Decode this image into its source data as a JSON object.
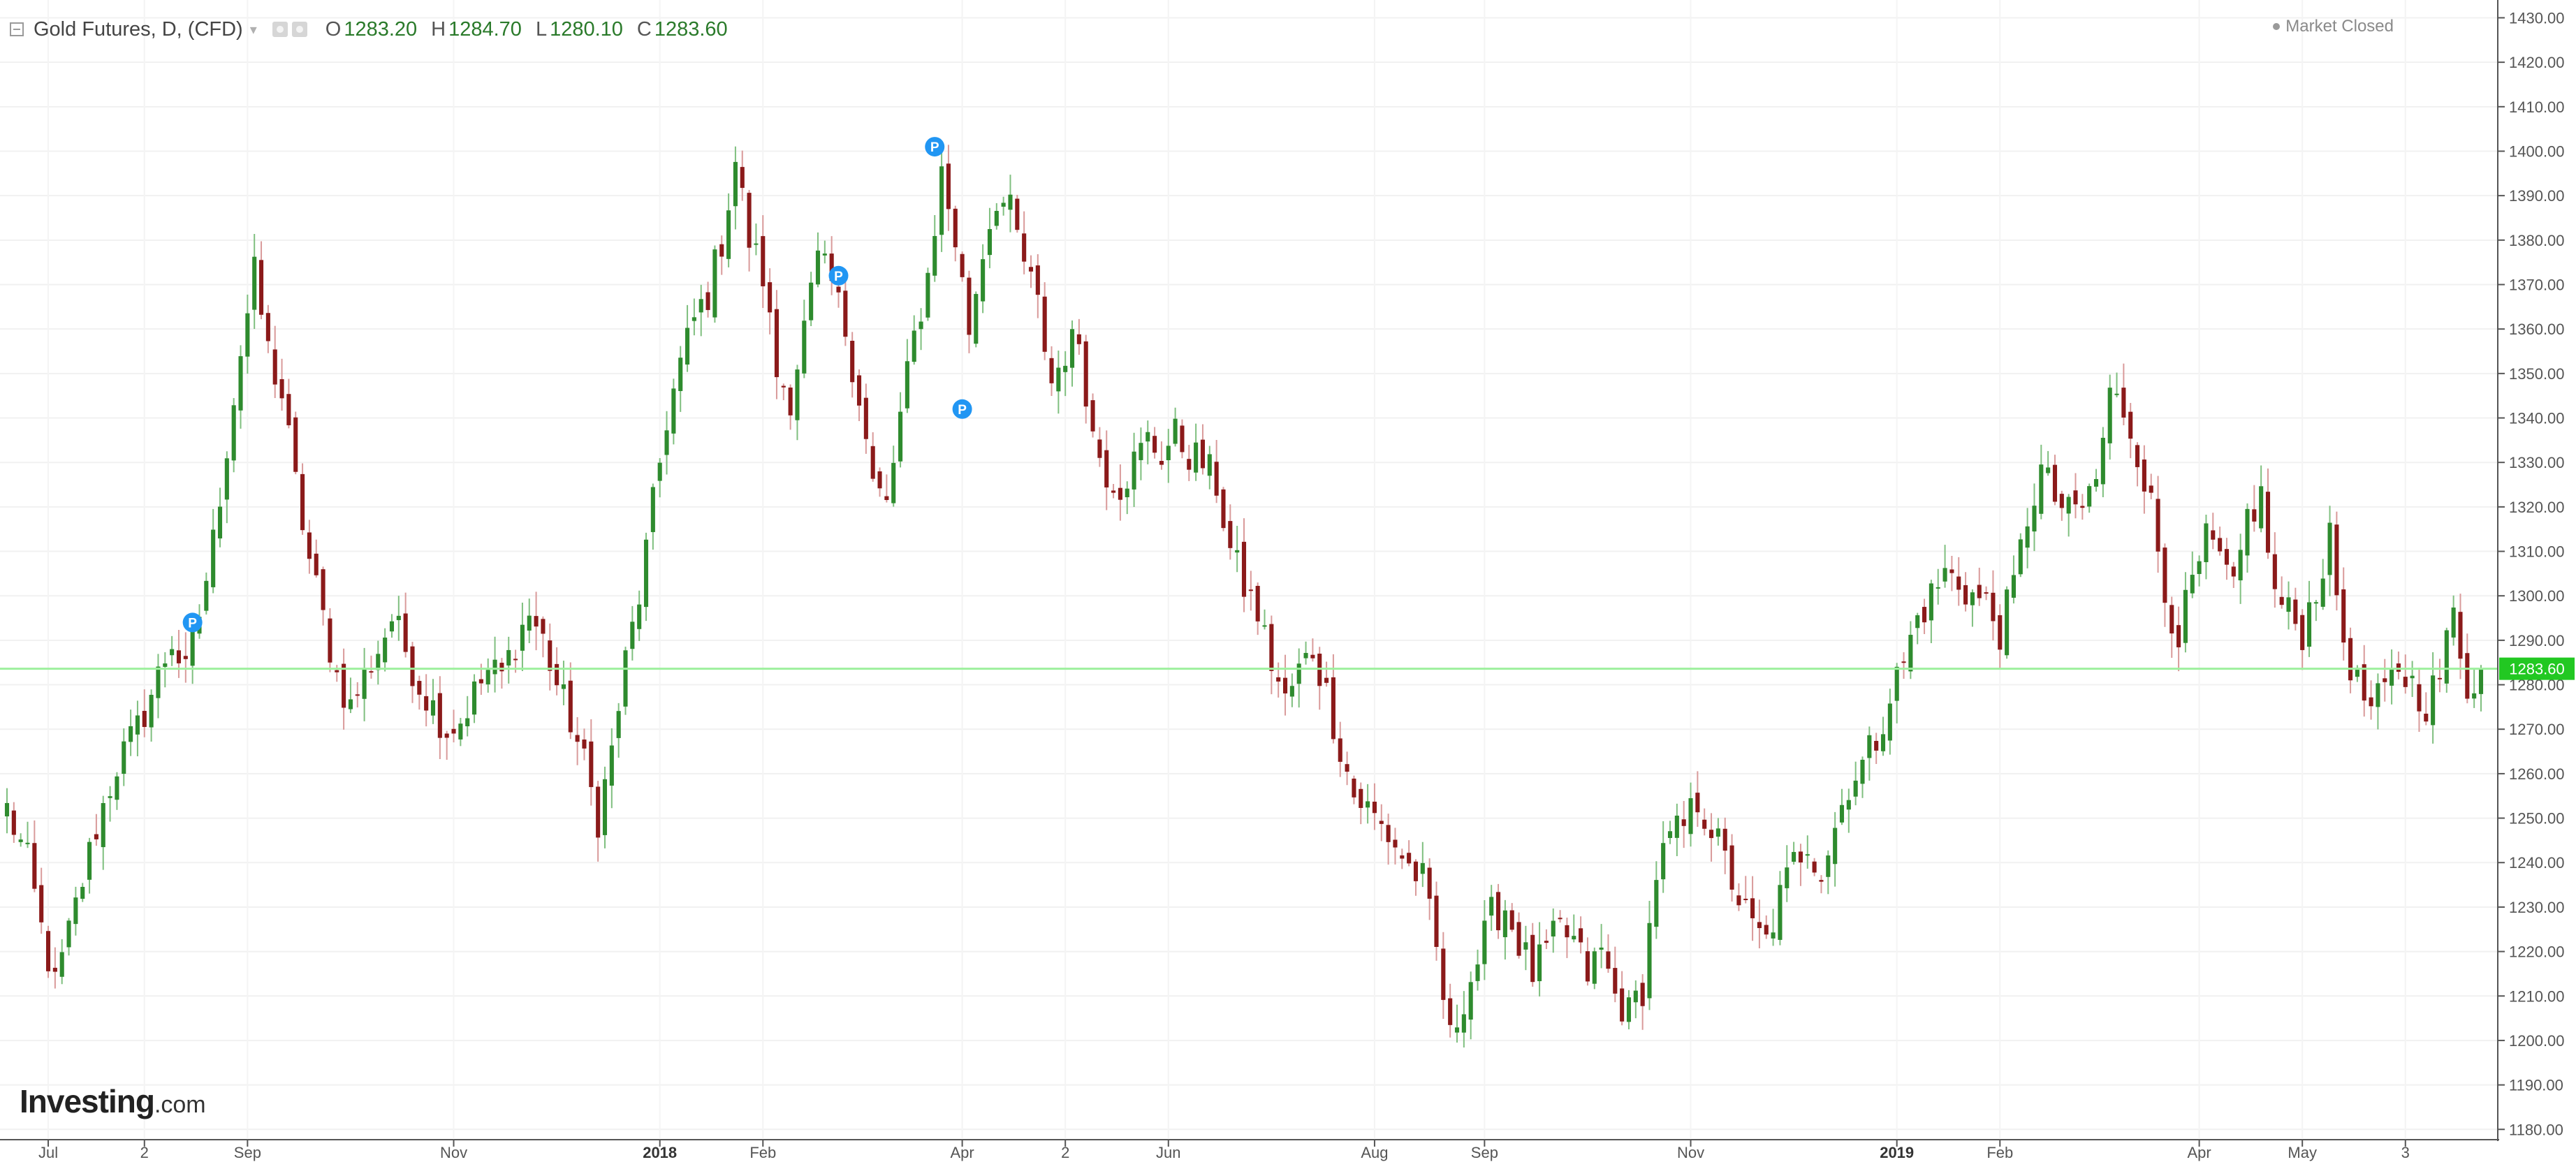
{
  "header": {
    "symbol": "Gold Futures, D, (CFD)",
    "open_label": "O",
    "open_value": "1283.20",
    "high_label": "H",
    "high_value": "1284.70",
    "low_label": "L",
    "low_value": "1280.10",
    "close_label": "C",
    "close_value": "1283.60"
  },
  "status": {
    "text": "Market Closed"
  },
  "logo": {
    "brand": "Investing",
    "suffix": ".com"
  },
  "icons": {
    "collapse": "collapse-square-icon",
    "chevron": "chevron-down-icon",
    "settings": "settings-icon",
    "market_status": "status-dot-icon",
    "event_marker": "p-marker-icon"
  },
  "colors": {
    "up": "#2e8b2e",
    "down": "#8b1a1a",
    "current_price_line": "#9ef09e",
    "price_label_bg": "#22c822",
    "marker": "#2196f3"
  },
  "chart_data": {
    "type": "candlestick",
    "ylim": [
      1178,
      1434
    ],
    "y_ticks": [
      1180,
      1190,
      1200,
      1210,
      1220,
      1230,
      1240,
      1250,
      1260,
      1270,
      1280,
      1290,
      1300,
      1310,
      1320,
      1330,
      1340,
      1350,
      1360,
      1370,
      1380,
      1390,
      1400,
      1410,
      1420,
      1430
    ],
    "x_range": [
      0,
      360
    ],
    "x_ticks": [
      {
        "x": 6,
        "label": "Jul"
      },
      {
        "x": 20,
        "label": "2"
      },
      {
        "x": 35,
        "label": "Sep"
      },
      {
        "x": 65,
        "label": "Nov"
      },
      {
        "x": 95,
        "label": "2018"
      },
      {
        "x": 110,
        "label": "Feb"
      },
      {
        "x": 139,
        "label": "Apr"
      },
      {
        "x": 154,
        "label": "2"
      },
      {
        "x": 169,
        "label": "Jun"
      },
      {
        "x": 199,
        "label": "Aug"
      },
      {
        "x": 215,
        "label": "Sep"
      },
      {
        "x": 245,
        "label": "Nov"
      },
      {
        "x": 275,
        "label": "2019"
      },
      {
        "x": 290,
        "label": "Feb"
      },
      {
        "x": 319,
        "label": "Apr"
      },
      {
        "x": 334,
        "label": "May"
      },
      {
        "x": 349,
        "label": "3"
      }
    ],
    "current_price": 1283.6,
    "current_price_label": "1283.60",
    "event_markers": [
      {
        "x": 27,
        "price": 1294,
        "label": "P"
      },
      {
        "x": 121,
        "price": 1372,
        "label": "P"
      },
      {
        "x": 135,
        "price": 1401,
        "label": "P"
      },
      {
        "x": 139,
        "price": 1342,
        "label": "P"
      }
    ],
    "anchors": [
      [
        0,
        1252
      ],
      [
        3,
        1240
      ],
      [
        5,
        1225
      ],
      [
        7,
        1212
      ],
      [
        10,
        1230
      ],
      [
        13,
        1248
      ],
      [
        16,
        1262
      ],
      [
        19,
        1270
      ],
      [
        22,
        1282
      ],
      [
        24,
        1290
      ],
      [
        26,
        1282
      ],
      [
        28,
        1296
      ],
      [
        30,
        1312
      ],
      [
        32,
        1334
      ],
      [
        34,
        1355
      ],
      [
        36,
        1372
      ],
      [
        38,
        1355
      ],
      [
        40,
        1345
      ],
      [
        42,
        1325
      ],
      [
        44,
        1308
      ],
      [
        46,
        1295
      ],
      [
        48,
        1282
      ],
      [
        50,
        1275
      ],
      [
        52,
        1282
      ],
      [
        54,
        1288
      ],
      [
        56,
        1295
      ],
      [
        58,
        1288
      ],
      [
        60,
        1280
      ],
      [
        62,
        1275
      ],
      [
        64,
        1270
      ],
      [
        66,
        1272
      ],
      [
        68,
        1278
      ],
      [
        70,
        1283
      ],
      [
        72,
        1282
      ],
      [
        74,
        1290
      ],
      [
        76,
        1296
      ],
      [
        78,
        1290
      ],
      [
        80,
        1280
      ],
      [
        82,
        1272
      ],
      [
        84,
        1262
      ],
      [
        86,
        1250
      ],
      [
        88,
        1265
      ],
      [
        90,
        1285
      ],
      [
        92,
        1300
      ],
      [
        94,
        1320
      ],
      [
        96,
        1340
      ],
      [
        98,
        1352
      ],
      [
        100,
        1362
      ],
      [
        102,
        1368
      ],
      [
        104,
        1380
      ],
      [
        106,
        1398
      ],
      [
        108,
        1380
      ],
      [
        110,
        1372
      ],
      [
        112,
        1350
      ],
      [
        114,
        1345
      ],
      [
        116,
        1360
      ],
      [
        118,
        1375
      ],
      [
        120,
        1370
      ],
      [
        122,
        1360
      ],
      [
        124,
        1345
      ],
      [
        126,
        1325
      ],
      [
        128,
        1320
      ],
      [
        130,
        1340
      ],
      [
        132,
        1358
      ],
      [
        134,
        1372
      ],
      [
        136,
        1395
      ],
      [
        138,
        1380
      ],
      [
        140,
        1360
      ],
      [
        142,
        1378
      ],
      [
        144,
        1390
      ],
      [
        146,
        1386
      ],
      [
        148,
        1375
      ],
      [
        150,
        1365
      ],
      [
        152,
        1348
      ],
      [
        154,
        1355
      ],
      [
        156,
        1358
      ],
      [
        158,
        1336
      ],
      [
        160,
        1328
      ],
      [
        162,
        1325
      ],
      [
        164,
        1330
      ],
      [
        166,
        1335
      ],
      [
        168,
        1332
      ],
      [
        170,
        1336
      ],
      [
        172,
        1332
      ],
      [
        174,
        1330
      ],
      [
        176,
        1325
      ],
      [
        178,
        1310
      ],
      [
        180,
        1302
      ],
      [
        182,
        1296
      ],
      [
        184,
        1285
      ],
      [
        186,
        1276
      ],
      [
        188,
        1283
      ],
      [
        190,
        1288
      ],
      [
        192,
        1278
      ],
      [
        194,
        1266
      ],
      [
        196,
        1255
      ],
      [
        198,
        1252
      ],
      [
        200,
        1248
      ],
      [
        202,
        1244
      ],
      [
        204,
        1239
      ],
      [
        206,
        1236
      ],
      [
        208,
        1220
      ],
      [
        210,
        1200
      ],
      [
        212,
        1210
      ],
      [
        214,
        1218
      ],
      [
        216,
        1228
      ],
      [
        218,
        1230
      ],
      [
        220,
        1222
      ],
      [
        222,
        1215
      ],
      [
        224,
        1220
      ],
      [
        226,
        1225
      ],
      [
        228,
        1222
      ],
      [
        230,
        1215
      ],
      [
        232,
        1220
      ],
      [
        234,
        1210
      ],
      [
        236,
        1206
      ],
      [
        238,
        1212
      ],
      [
        240,
        1238
      ],
      [
        242,
        1245
      ],
      [
        244,
        1248
      ],
      [
        246,
        1254
      ],
      [
        248,
        1248
      ],
      [
        250,
        1240
      ],
      [
        252,
        1232
      ],
      [
        254,
        1225
      ],
      [
        256,
        1222
      ],
      [
        258,
        1232
      ],
      [
        260,
        1240
      ],
      [
        262,
        1245
      ],
      [
        264,
        1238
      ],
      [
        266,
        1248
      ],
      [
        268,
        1258
      ],
      [
        270,
        1262
      ],
      [
        272,
        1268
      ],
      [
        274,
        1278
      ],
      [
        276,
        1285
      ],
      [
        278,
        1295
      ],
      [
        280,
        1300
      ],
      [
        282,
        1305
      ],
      [
        284,
        1303
      ],
      [
        286,
        1300
      ],
      [
        288,
        1298
      ],
      [
        290,
        1292
      ],
      [
        292,
        1302
      ],
      [
        294,
        1318
      ],
      [
        296,
        1328
      ],
      [
        298,
        1322
      ],
      [
        300,
        1318
      ],
      [
        302,
        1320
      ],
      [
        304,
        1326
      ],
      [
        306,
        1345
      ],
      [
        308,
        1342
      ],
      [
        310,
        1333
      ],
      [
        312,
        1320
      ],
      [
        314,
        1300
      ],
      [
        316,
        1292
      ],
      [
        318,
        1302
      ],
      [
        320,
        1312
      ],
      [
        322,
        1308
      ],
      [
        324,
        1300
      ],
      [
        326,
        1318
      ],
      [
        328,
        1322
      ],
      [
        330,
        1300
      ],
      [
        332,
        1296
      ],
      [
        334,
        1292
      ],
      [
        336,
        1302
      ],
      [
        338,
        1312
      ],
      [
        340,
        1290
      ],
      [
        342,
        1280
      ],
      [
        344,
        1274
      ],
      [
        346,
        1278
      ],
      [
        348,
        1284
      ],
      [
        350,
        1280
      ],
      [
        352,
        1276
      ],
      [
        354,
        1282
      ],
      [
        356,
        1296
      ],
      [
        358,
        1280
      ],
      [
        360,
        1283.6
      ]
    ],
    "grid": true,
    "legend": "none"
  }
}
